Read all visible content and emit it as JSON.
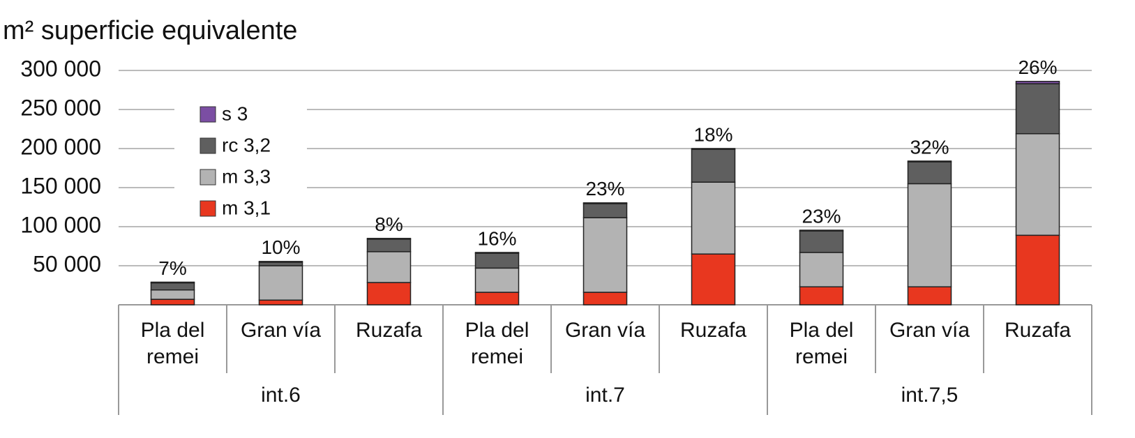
{
  "chart_data": {
    "type": "stacked-bar",
    "ylabel": "m² superficie equivalente",
    "categories": [
      "Pla del remei",
      "Gran vía",
      "Ruzafa",
      "Pla del remei",
      "Gran vía",
      "Ruzafa",
      "Pla del remei",
      "Gran vía",
      "Ruzafa"
    ],
    "groups": [
      {
        "name": "int.6",
        "size": 3
      },
      {
        "name": "int.7",
        "size": 3
      },
      {
        "name": "int.7,5",
        "size": 3
      }
    ],
    "series": [
      {
        "name": "m 3,1",
        "color": "#e8371f",
        "values": [
          7000,
          6000,
          28500,
          16000,
          16000,
          65000,
          23000,
          23000,
          89000
        ]
      },
      {
        "name": "m 3,3",
        "color": "#b3b3b3",
        "values": [
          12000,
          44000,
          39500,
          31000,
          95500,
          92000,
          44000,
          132000,
          130000
        ]
      },
      {
        "name": "rc 3,2",
        "color": "#5f5f5f",
        "values": [
          9000,
          4500,
          16000,
          19000,
          18000,
          42000,
          27500,
          28000,
          64000
        ]
      },
      {
        "name": "s 3",
        "color": "#7b4ea3",
        "values": [
          1000,
          1000,
          1000,
          1000,
          1000,
          1000,
          1000,
          1000,
          3000
        ]
      }
    ],
    "annotations": [
      "7%",
      "10%",
      "8%",
      "16%",
      "23%",
      "18%",
      "23%",
      "32%",
      "26%"
    ],
    "ylim": [
      0,
      300000
    ],
    "yticks": [
      {
        "value": 50000,
        "label": "50 000"
      },
      {
        "value": 100000,
        "label": "100 000"
      },
      {
        "value": 150000,
        "label": "150 000"
      },
      {
        "value": 200000,
        "label": "200 000"
      },
      {
        "value": 250000,
        "label": "250 000"
      },
      {
        "value": 300000,
        "label": "300 000"
      }
    ],
    "grid": true
  }
}
